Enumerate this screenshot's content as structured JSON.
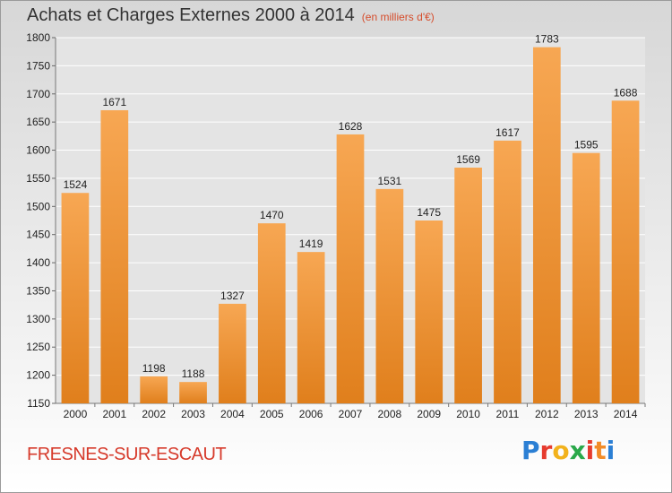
{
  "title": "Achats et Charges Externes 2000 à 2014",
  "unit_label": "(en milliers d'€)",
  "commune": "FRESNES-SUR-ESCAUT",
  "logo": {
    "text": "Proxiti",
    "colors": [
      "#2b7fd4",
      "#e63b2e",
      "#f2b21c",
      "#2aa84a",
      "#e63b2e",
      "#f28c28",
      "#2b7fd4"
    ]
  },
  "colors": {
    "bar_light": "#f7a753",
    "bar_dark": "#e07f1c",
    "title": "#333333",
    "unit": "#d64d2c",
    "commune": "#d63a2b"
  },
  "chart_data": {
    "type": "bar",
    "title": "Achats et Charges Externes 2000 à 2014",
    "categories": [
      "2000",
      "2001",
      "2002",
      "2003",
      "2004",
      "2005",
      "2006",
      "2007",
      "2008",
      "2009",
      "2010",
      "2011",
      "2012",
      "2013",
      "2014"
    ],
    "values": [
      1524,
      1671,
      1198,
      1188,
      1327,
      1470,
      1419,
      1628,
      1531,
      1475,
      1569,
      1617,
      1783,
      1595,
      1688
    ],
    "ylim": [
      1150,
      1800
    ],
    "yticks": [
      1150,
      1200,
      1250,
      1300,
      1350,
      1400,
      1450,
      1500,
      1550,
      1600,
      1650,
      1700,
      1750,
      1800
    ],
    "grid": true,
    "data_labels": true
  }
}
